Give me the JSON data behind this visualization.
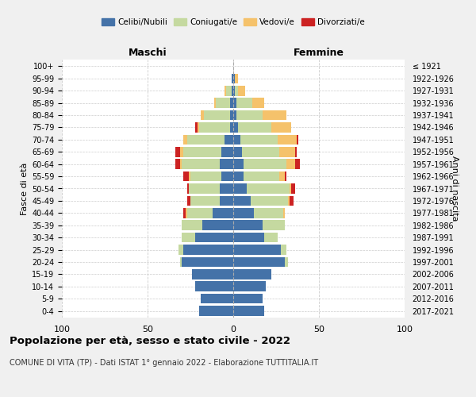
{
  "age_groups": [
    "0-4",
    "5-9",
    "10-14",
    "15-19",
    "20-24",
    "25-29",
    "30-34",
    "35-39",
    "40-44",
    "45-49",
    "50-54",
    "55-59",
    "60-64",
    "65-69",
    "70-74",
    "75-79",
    "80-84",
    "85-89",
    "90-94",
    "95-99",
    "100+"
  ],
  "birth_years": [
    "2017-2021",
    "2012-2016",
    "2007-2011",
    "2002-2006",
    "1997-2001",
    "1992-1996",
    "1987-1991",
    "1982-1986",
    "1977-1981",
    "1972-1976",
    "1967-1971",
    "1962-1966",
    "1957-1961",
    "1952-1956",
    "1947-1951",
    "1942-1946",
    "1937-1941",
    "1932-1936",
    "1927-1931",
    "1922-1926",
    "≤ 1921"
  ],
  "maschi": {
    "celibi": [
      20,
      19,
      22,
      24,
      30,
      29,
      22,
      18,
      12,
      8,
      8,
      7,
      8,
      7,
      5,
      2,
      2,
      2,
      1,
      1,
      0
    ],
    "coniugati": [
      0,
      0,
      0,
      0,
      1,
      3,
      8,
      12,
      15,
      17,
      18,
      18,
      22,
      22,
      22,
      18,
      15,
      8,
      3,
      0,
      0
    ],
    "vedovi": [
      0,
      0,
      0,
      0,
      0,
      0,
      0,
      0,
      1,
      0,
      0,
      1,
      1,
      2,
      2,
      1,
      2,
      1,
      1,
      0,
      0
    ],
    "divorziati": [
      0,
      0,
      0,
      0,
      0,
      0,
      0,
      0,
      1,
      2,
      1,
      3,
      3,
      3,
      0,
      1,
      0,
      0,
      0,
      0,
      0
    ]
  },
  "femmine": {
    "nubili": [
      18,
      17,
      19,
      22,
      30,
      28,
      18,
      17,
      12,
      10,
      8,
      6,
      6,
      5,
      4,
      3,
      2,
      2,
      1,
      1,
      0
    ],
    "coniugate": [
      0,
      0,
      0,
      0,
      2,
      3,
      8,
      13,
      17,
      22,
      25,
      21,
      25,
      22,
      22,
      19,
      15,
      9,
      2,
      0,
      0
    ],
    "vedove": [
      0,
      0,
      0,
      0,
      0,
      0,
      0,
      0,
      1,
      1,
      1,
      3,
      5,
      9,
      11,
      12,
      14,
      7,
      4,
      2,
      0
    ],
    "divorziate": [
      0,
      0,
      0,
      0,
      0,
      0,
      0,
      0,
      0,
      2,
      2,
      1,
      3,
      1,
      1,
      0,
      0,
      0,
      0,
      0,
      0
    ]
  },
  "colors": {
    "celibi_nubili": "#4472a8",
    "coniugati": "#c5d9a0",
    "vedovi": "#f5c26b",
    "divorziati": "#cc2222"
  },
  "legend_labels": [
    "Celibi/Nubili",
    "Coniugati/e",
    "Vedovi/e",
    "Divorziati/e"
  ],
  "xlim": 100,
  "xlabel_left": "Maschi",
  "xlabel_right": "Femmine",
  "ylabel_left": "Fasce di età",
  "ylabel_right": "Anni di nascita",
  "title": "Popolazione per età, sesso e stato civile - 2022",
  "subtitle": "COMUNE DI VITA (TP) - Dati ISTAT 1° gennaio 2022 - Elaborazione TUTTITALIA.IT",
  "bg_color": "#f0f0f0",
  "plot_bg_color": "#ffffff"
}
